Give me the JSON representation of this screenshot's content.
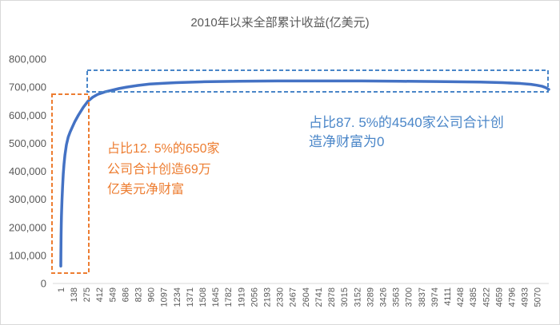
{
  "chart_data": {
    "type": "line",
    "title": "2010年以来全部累计收益(亿美元)",
    "xlim": [
      1,
      5190
    ],
    "ylim": [
      0,
      800000
    ],
    "grid": false,
    "legend": "none",
    "y_tick_labels": [
      "0",
      "100,000",
      "200,000",
      "300,000",
      "400,000",
      "500,000",
      "600,000",
      "700,000",
      "800,000"
    ],
    "x_tick_labels": [
      "1",
      "138",
      "275",
      "412",
      "549",
      "686",
      "823",
      "960",
      "1097",
      "1234",
      "1371",
      "1508",
      "1645",
      "1782",
      "1919",
      "2056",
      "2193",
      "2330",
      "2467",
      "2604",
      "2741",
      "2878",
      "3015",
      "3152",
      "3289",
      "3426",
      "3563",
      "3700",
      "3837",
      "3974",
      "4111",
      "4248",
      "4385",
      "4522",
      "4659",
      "4796",
      "4933",
      "5070"
    ],
    "x": [
      1,
      2,
      3,
      4,
      6,
      8,
      10,
      14,
      20,
      27,
      35,
      45,
      61,
      80,
      100,
      120,
      150,
      188,
      240,
      290,
      340,
      392,
      470,
      546,
      620,
      700,
      820,
      946,
      1100,
      1227,
      1500,
      1900,
      2300,
      2760,
      3200,
      3610,
      4000,
      4460,
      4700,
      4890,
      5000,
      5060,
      5120,
      5160,
      5190
    ],
    "series": [
      {
        "color": "#4472C4",
        "values": [
          62000,
          105000,
          140000,
          170000,
          210000,
          240000,
          262000,
          300000,
          345000,
          390000,
          425000,
          458000,
          495000,
          522000,
          540000,
          555000,
          577000,
          600000,
          628000,
          650000,
          664000,
          674000,
          683000,
          689000,
          695000,
          700000,
          706000,
          711000,
          714000,
          716000,
          719000,
          721000,
          722000,
          722000,
          722000,
          721000,
          720000,
          718000,
          716000,
          713000,
          710000,
          707000,
          703000,
          698000,
          692000
        ]
      }
    ],
    "annotations": [
      {
        "color": "#ED7D31",
        "lines": [
          "占比12. 5%的650家",
          "公司合计创造69万",
          "亿美元净财富"
        ]
      },
      {
        "color": "#4A86C8",
        "lines": [
          "占比87. 5%的4540家公司合计创",
          "造净财富为0"
        ]
      }
    ]
  }
}
